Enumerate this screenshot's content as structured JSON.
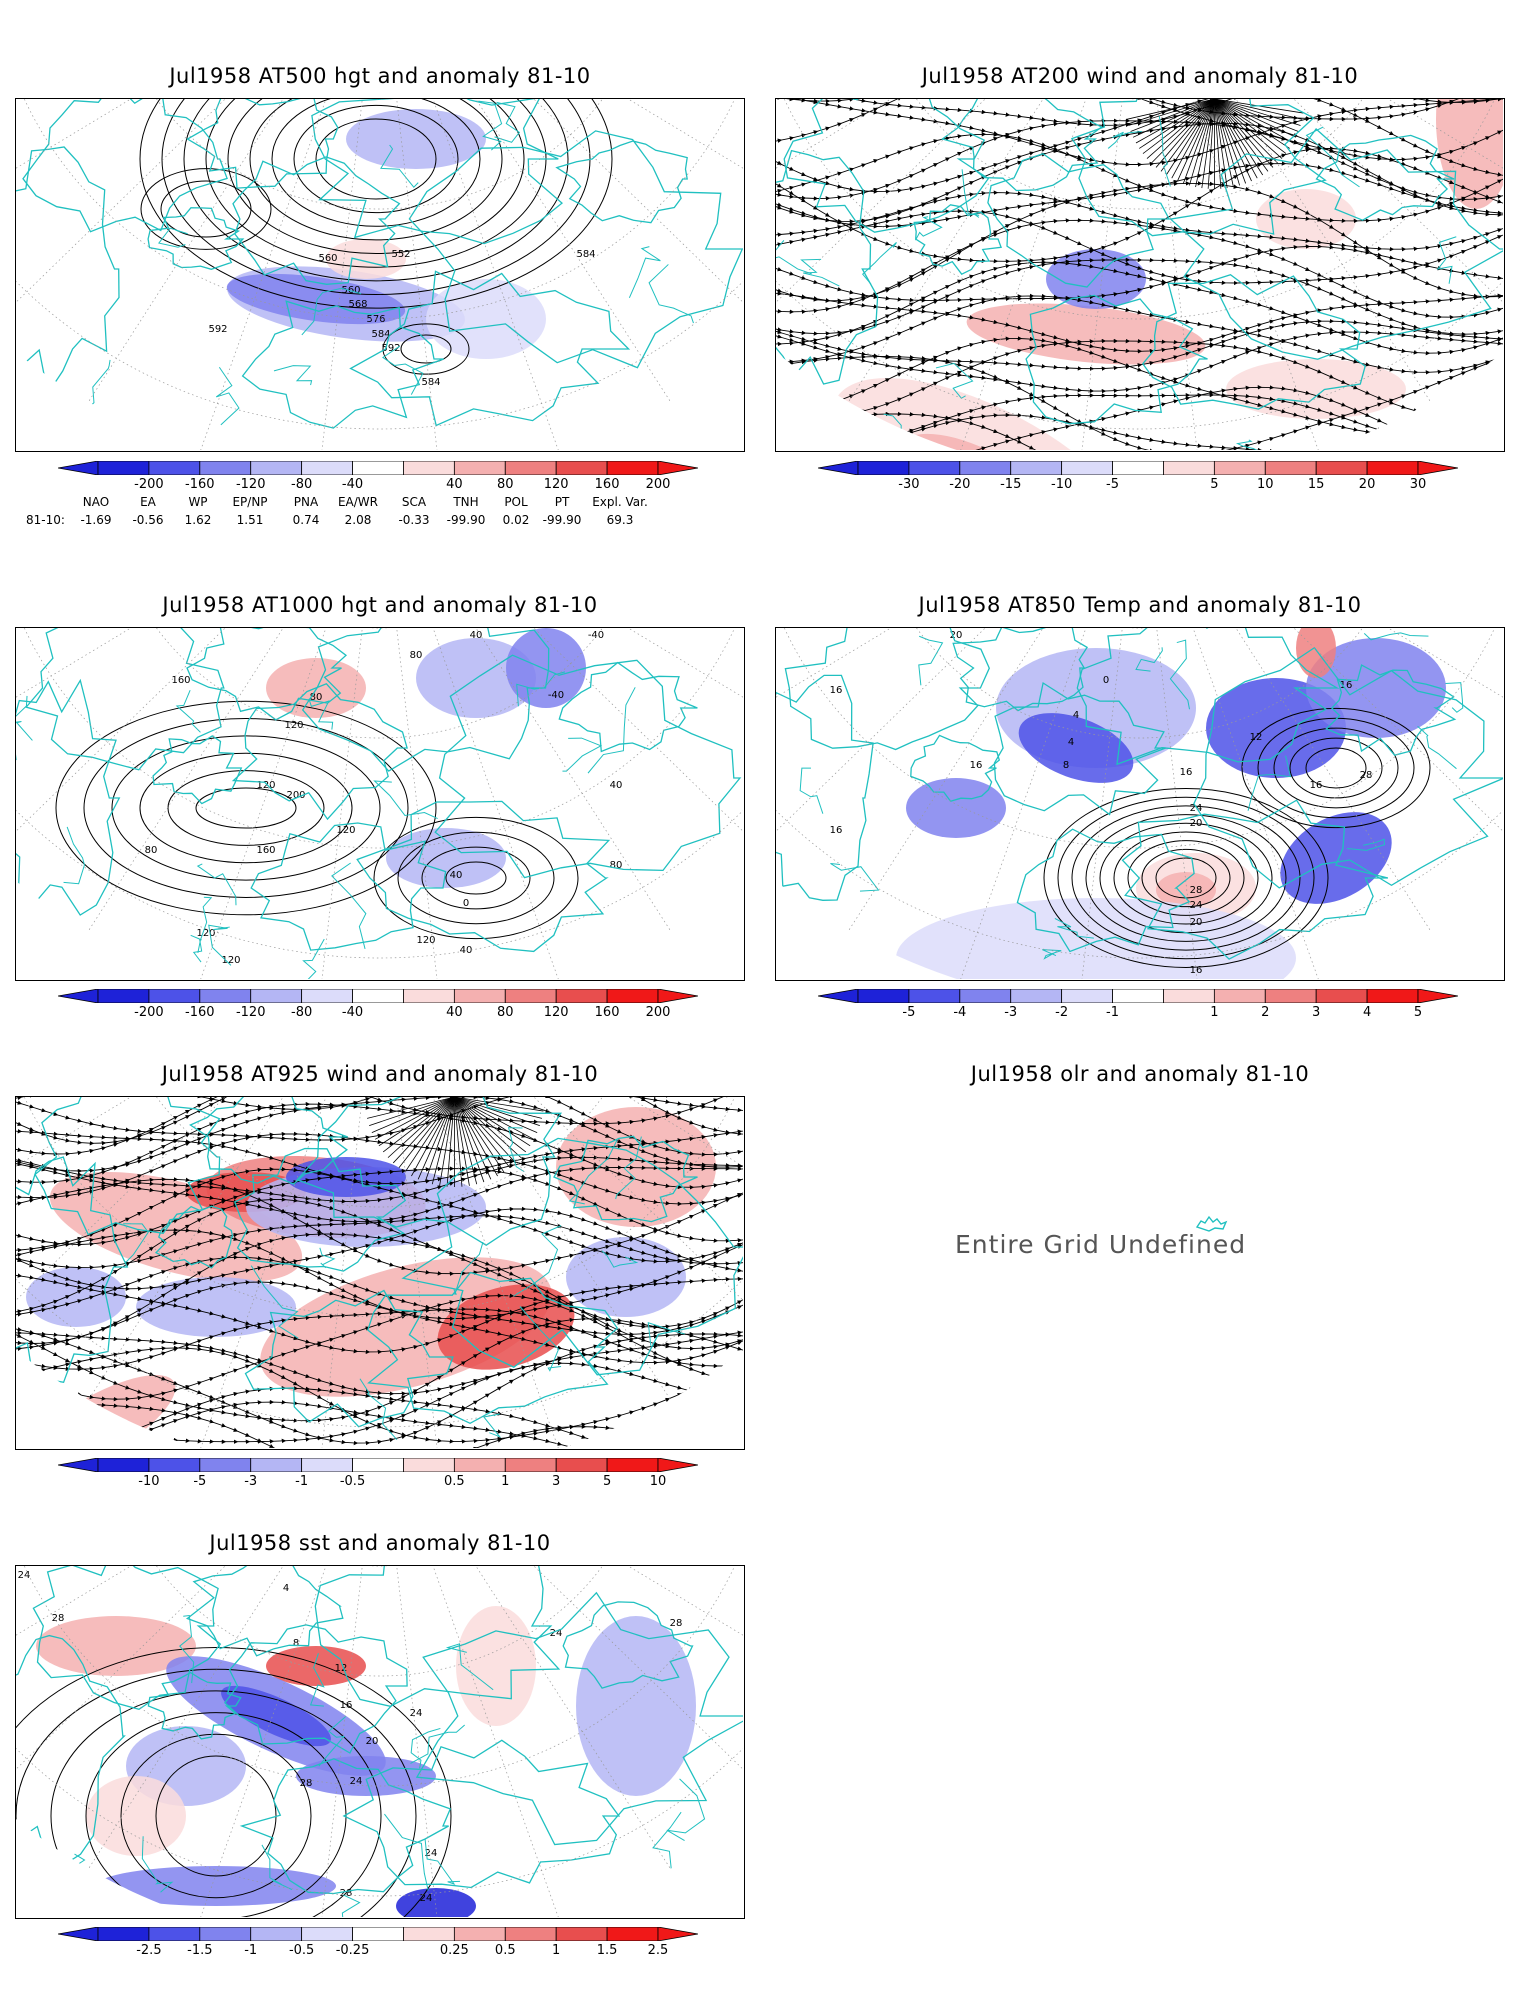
{
  "panels": [
    {
      "id": "p1",
      "title": "Jul1958 AT500 hgt and anomaly 81-10",
      "kind": "hgt500",
      "contour_labels": [
        "560",
        "552",
        "560",
        "568",
        "576",
        "584",
        "592",
        "592",
        "584",
        "584"
      ]
    },
    {
      "id": "p2",
      "title": "Jul1958 AT200 wind and anomaly 81-10",
      "kind": "wind200",
      "contour_labels": []
    },
    {
      "id": "p3",
      "title": "Jul1958 AT1000 hgt and anomaly 81-10",
      "kind": "hgt1000",
      "contour_labels": [
        "160",
        "40",
        "80",
        "120",
        "80",
        "-40",
        "-40",
        "120",
        "200",
        "160",
        "80",
        "120",
        "40",
        "0",
        "40",
        "80",
        "40",
        "120",
        "120",
        "120"
      ]
    },
    {
      "id": "p4",
      "title": "Jul1958 AT850 Temp and anomaly 81-10",
      "kind": "t850",
      "contour_labels": [
        "20",
        "4",
        "0",
        "16",
        "16",
        "4",
        "12",
        "8",
        "16",
        "16",
        "16",
        "28",
        "24",
        "20",
        "28",
        "24",
        "20",
        "16",
        "16"
      ]
    },
    {
      "id": "p5",
      "title": "Jul1958 AT925 wind and anomaly 81-10",
      "kind": "wind925",
      "contour_labels": []
    },
    {
      "id": "p6",
      "title": "Jul1958 olr and anomaly 81-10",
      "kind": "olr",
      "message": "Entire Grid Undefined"
    },
    {
      "id": "p7",
      "title": "Jul1958 sst and anomaly 81-10",
      "kind": "sst",
      "contour_labels": [
        "24",
        "28",
        "4",
        "8",
        "12",
        "16",
        "20",
        "24",
        "24",
        "28",
        "28",
        "24",
        "24",
        "28",
        "24"
      ]
    }
  ],
  "colorbars": {
    "hgt": [
      "-200",
      "-160",
      "-120",
      "-80",
      "-40",
      "40",
      "80",
      "120",
      "160",
      "200"
    ],
    "wind200": [
      "-30",
      "-20",
      "-15",
      "-10",
      "-5",
      "5",
      "10",
      "15",
      "20",
      "30"
    ],
    "t850": [
      "-5",
      "-4",
      "-3",
      "-2",
      "-1",
      "1",
      "2",
      "3",
      "4",
      "5"
    ],
    "wind925": [
      "-10",
      "-5",
      "-3",
      "-1",
      "-0.5",
      "0.5",
      "1",
      "3",
      "5",
      "10"
    ],
    "sst": [
      "-2.5",
      "-1.5",
      "-1",
      "-0.5",
      "-0.25",
      "0.25",
      "0.5",
      "1",
      "1.5",
      "2.5"
    ]
  },
  "colors": {
    "neg": [
      "#1e22d8",
      "#4d52e8",
      "#8083ee",
      "#b4b6f4",
      "#dcdcfa"
    ],
    "pos": [
      "#fadcdc",
      "#f4b0b0",
      "#ee8080",
      "#e84e4e",
      "#f01818"
    ],
    "coast": "#20c0c0",
    "contour": "#000000"
  },
  "indices": {
    "headers": [
      "NAO",
      "EA",
      "WP",
      "EP/NP",
      "PNA",
      "EA/WR",
      "SCA",
      "TNH",
      "POL",
      "PT",
      "Expl. Var."
    ],
    "row_label": "81-10:",
    "values": [
      "-1.69",
      "-0.56",
      "1.62",
      "1.51",
      "0.74",
      "2.08",
      "-0.33",
      "-99.90",
      "0.02",
      "-99.90",
      "69.3"
    ]
  }
}
